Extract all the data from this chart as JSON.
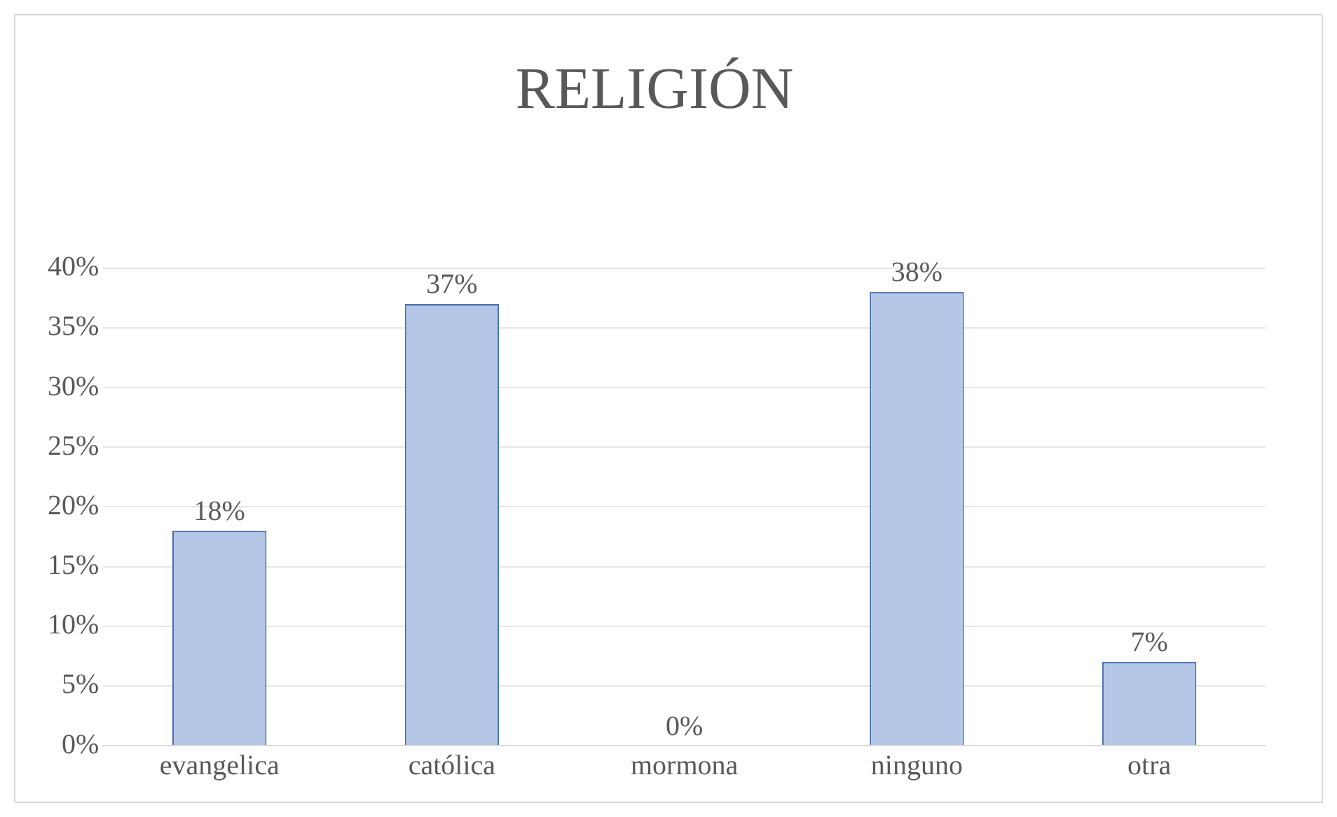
{
  "chart_data": {
    "type": "bar",
    "title": "RELIGIÓN",
    "categories": [
      "evangelica",
      "católica",
      "mormona",
      "ninguno",
      "otra"
    ],
    "values": [
      18,
      37,
      0,
      38,
      7
    ],
    "value_labels": [
      "18%",
      "37%",
      "0%",
      "38%",
      "7%"
    ],
    "color": "#b4c7e7",
    "ylim": [
      0,
      40
    ],
    "yticks": [
      {
        "value": 0,
        "label": "0%"
      },
      {
        "value": 5,
        "label": "5%"
      },
      {
        "value": 10,
        "label": "10%"
      },
      {
        "value": 15,
        "label": "15%"
      },
      {
        "value": 20,
        "label": "20%"
      },
      {
        "value": 25,
        "label": "25%"
      },
      {
        "value": 30,
        "label": "30%"
      },
      {
        "value": 35,
        "label": "35%"
      },
      {
        "value": 40,
        "label": "40%"
      }
    ],
    "grid": "y"
  }
}
